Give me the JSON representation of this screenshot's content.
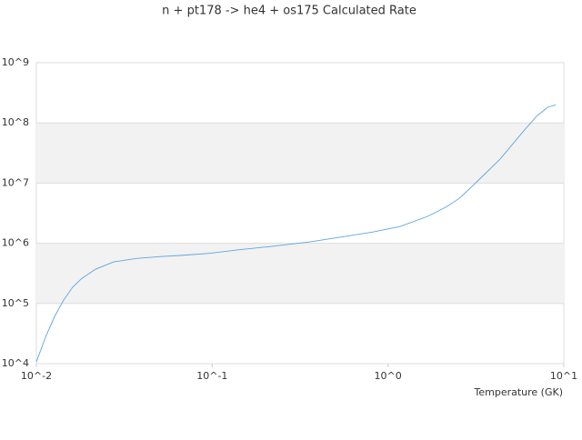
{
  "chart_data": {
    "type": "line",
    "title": "n + pt178 -> he4 + os175 Calculated Rate",
    "x_label": "Temperature (GK)",
    "log_x": true,
    "log_y": true,
    "grid": true,
    "banded_grid": true,
    "xlim": [
      0.01,
      10
    ],
    "ylim": [
      10000,
      1000000000
    ],
    "xticks": [
      {
        "value": 0.01,
        "label": "10^-2"
      },
      {
        "value": 0.1,
        "label": "10^-1"
      },
      {
        "value": 1,
        "label": "10^0"
      },
      {
        "value": 10,
        "label": "10^1"
      }
    ],
    "yticks": [
      {
        "value": 10000,
        "label": "10^4"
      },
      {
        "value": 100000,
        "label": "10^5"
      },
      {
        "value": 1000000,
        "label": "10^6"
      },
      {
        "value": 10000000,
        "label": "10^7"
      },
      {
        "value": 100000000,
        "label": "10^8"
      },
      {
        "value": 1000000000,
        "label": "10^9"
      }
    ],
    "x": [
      0.01,
      0.0113,
      0.0127,
      0.0143,
      0.0161,
      0.0181,
      0.0217,
      0.0275,
      0.0371,
      0.0499,
      0.0671,
      0.096,
      0.137,
      0.22,
      0.356,
      0.57,
      0.82,
      1.17,
      1.68,
      2.14,
      2.55,
      3.2,
      4.34,
      5.85,
      7.0,
      8.1,
      9.0
    ],
    "series": [
      {
        "color": "#5da5e0",
        "values": [
          10700,
          28000,
          61000,
          114000,
          187000,
          260000,
          370000,
          490000,
          560000,
          600000,
          630000,
          680000,
          770000,
          890000,
          1050000,
          1300000,
          1540000,
          1900000,
          2800000,
          4000000,
          5600000,
          10500000,
          25000000,
          71000000,
          129000000,
          182000000,
          200000000
        ]
      }
    ]
  }
}
